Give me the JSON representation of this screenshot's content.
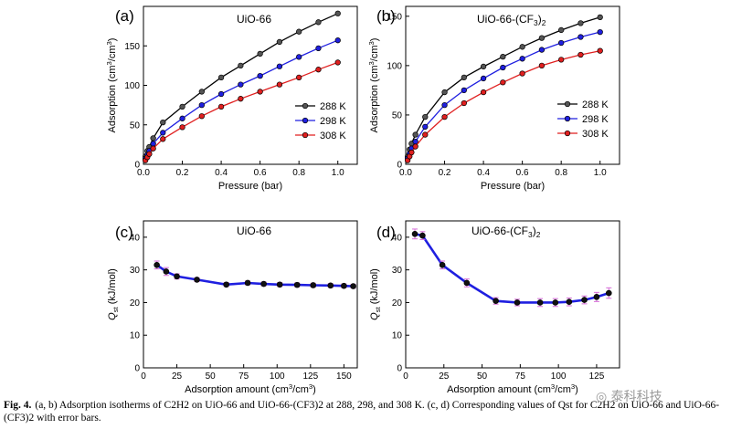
{
  "chart_data": [
    {
      "panel": "(a)",
      "type": "line",
      "title": "UiO-66",
      "xlabel": "Pressure (bar)",
      "ylabel": "Adsorption (cm3/cm3)",
      "xlim": [
        0,
        1.1
      ],
      "ylim": [
        0,
        200
      ],
      "xticks": [
        0.0,
        0.2,
        0.4,
        0.6,
        0.8,
        1.0
      ],
      "yticks": [
        0,
        50,
        100,
        150
      ],
      "legend": "right-middle",
      "series": [
        {
          "name": "288 K",
          "color": "#000000",
          "x": [
            0.01,
            0.02,
            0.03,
            0.05,
            0.1,
            0.2,
            0.3,
            0.4,
            0.5,
            0.6,
            0.7,
            0.8,
            0.9,
            1.0
          ],
          "y": [
            10,
            17,
            22,
            33,
            53,
            73,
            92,
            110,
            125,
            140,
            155,
            168,
            180,
            191
          ]
        },
        {
          "name": "298 K",
          "color": "#1f1fe0",
          "x": [
            0.01,
            0.02,
            0.03,
            0.05,
            0.1,
            0.2,
            0.3,
            0.4,
            0.5,
            0.6,
            0.7,
            0.8,
            0.9,
            1.0
          ],
          "y": [
            7,
            12,
            17,
            26,
            40,
            58,
            75,
            89,
            101,
            112,
            124,
            136,
            147,
            157
          ]
        },
        {
          "name": "308 K",
          "color": "#e01f1f",
          "x": [
            0.01,
            0.02,
            0.03,
            0.05,
            0.1,
            0.2,
            0.3,
            0.4,
            0.5,
            0.6,
            0.7,
            0.8,
            0.9,
            1.0
          ],
          "y": [
            5,
            9,
            13,
            20,
            32,
            47,
            61,
            73,
            83,
            92,
            101,
            110,
            120,
            129
          ]
        }
      ]
    },
    {
      "panel": "(b)",
      "type": "line",
      "title": "UiO-66-(CF3)2",
      "xlabel": "Pressure (bar)",
      "ylabel": "Adsorption (cm3/cm3)",
      "xlim": [
        0,
        1.1
      ],
      "ylim": [
        0,
        160
      ],
      "xticks": [
        0.0,
        0.2,
        0.4,
        0.6,
        0.8,
        1.0
      ],
      "yticks": [
        0,
        50,
        100,
        150
      ],
      "legend": "right-middle",
      "series": [
        {
          "name": "288 K",
          "color": "#000000",
          "x": [
            0.01,
            0.02,
            0.03,
            0.05,
            0.1,
            0.2,
            0.3,
            0.4,
            0.5,
            0.6,
            0.7,
            0.8,
            0.9,
            1.0
          ],
          "y": [
            8,
            15,
            21,
            30,
            48,
            73,
            88,
            99,
            109,
            119,
            128,
            136,
            143,
            149
          ]
        },
        {
          "name": "298 K",
          "color": "#1f1fe0",
          "x": [
            0.01,
            0.02,
            0.03,
            0.05,
            0.1,
            0.2,
            0.3,
            0.4,
            0.5,
            0.6,
            0.7,
            0.8,
            0.9,
            1.0
          ],
          "y": [
            6,
            11,
            16,
            23,
            38,
            60,
            75,
            87,
            98,
            107,
            116,
            123,
            129,
            134
          ]
        },
        {
          "name": "308 K",
          "color": "#e01f1f",
          "x": [
            0.01,
            0.02,
            0.03,
            0.05,
            0.1,
            0.2,
            0.3,
            0.4,
            0.5,
            0.6,
            0.7,
            0.8,
            0.9,
            1.0
          ],
          "y": [
            4,
            8,
            12,
            18,
            30,
            48,
            62,
            73,
            83,
            92,
            100,
            106,
            111,
            115
          ]
        }
      ]
    },
    {
      "panel": "(c)",
      "type": "line",
      "title": "UiO-66",
      "xlabel": "Adsorption amount (cm3/cm3)",
      "ylabel": "Qst (kJ/mol)",
      "xlim": [
        0,
        160
      ],
      "ylim": [
        0,
        45
      ],
      "xticks": [
        0,
        25,
        50,
        75,
        100,
        125,
        150
      ],
      "yticks": [
        0,
        10,
        20,
        30,
        40
      ],
      "series": [
        {
          "name": "Qst",
          "color": "#1f1fe0",
          "x": [
            10,
            17,
            25,
            40,
            62,
            78,
            90,
            102,
            115,
            127,
            140,
            150,
            157
          ],
          "y": [
            31.5,
            29.5,
            28.0,
            27.0,
            25.5,
            26.0,
            25.7,
            25.5,
            25.4,
            25.3,
            25.2,
            25.1,
            25.0
          ],
          "err": [
            1.2,
            1.2,
            0.8,
            0.6,
            0.6,
            0.6,
            0.6,
            0.6,
            0.6,
            0.6,
            0.6,
            0.6,
            0.6
          ]
        }
      ]
    },
    {
      "panel": "(d)",
      "type": "line",
      "title": "UiO-66-(CF3)2",
      "xlabel": "Adsorption amount (cm3/cm3)",
      "ylabel": "Qst (kJ/mol)",
      "xlim": [
        0,
        140
      ],
      "ylim": [
        0,
        45
      ],
      "xticks": [
        0,
        25,
        50,
        75,
        100,
        125
      ],
      "yticks": [
        0,
        10,
        20,
        30,
        40
      ],
      "series": [
        {
          "name": "Qst",
          "color": "#1f1fe0",
          "x": [
            6,
            11,
            24,
            40,
            59,
            73,
            88,
            98,
            107,
            117,
            125,
            133
          ],
          "y": [
            41.0,
            40.5,
            31.5,
            26.0,
            20.5,
            20.0,
            20.0,
            20.0,
            20.2,
            20.8,
            21.7,
            22.9
          ],
          "err": [
            1.5,
            1.2,
            1.2,
            1.2,
            1.0,
            1.0,
            1.2,
            1.2,
            1.2,
            1.2,
            1.4,
            1.6
          ]
        }
      ]
    }
  ],
  "caption": {
    "label": "Fig. 4.",
    "text": "(a, b) Adsorption isotherms of C2H2 on UiO-66 and UiO-66-(CF3)2 at 288, 298, and 308 K. (c, d) Corresponding values of Qst for C2H2 on UiO-66 and UiO-66-(CF3)2 with error bars."
  },
  "watermark": "泰科科技"
}
